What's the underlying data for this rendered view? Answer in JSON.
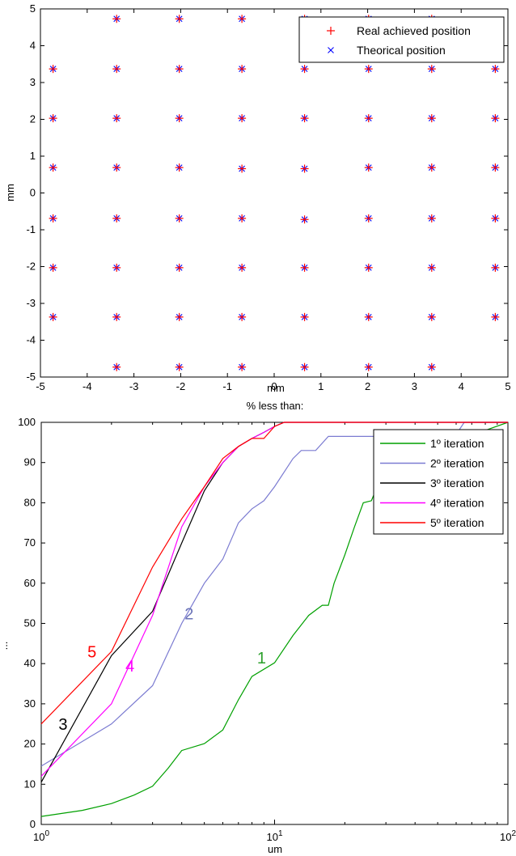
{
  "chart_data": [
    {
      "type": "scatter",
      "title": "",
      "xlabel": "mm",
      "ylabel": "mm",
      "xlim": [
        -5,
        5
      ],
      "ylim": [
        -5,
        5
      ],
      "xticks": [
        "-5",
        "-4",
        "-3",
        "-2",
        "-1",
        "0",
        "1",
        "2",
        "3",
        "4",
        "5"
      ],
      "yticks": [
        "5",
        "4",
        "3",
        "2",
        "1",
        "0",
        "-1",
        "-2",
        "-3",
        "-4",
        "-5"
      ],
      "grid": false,
      "legend_position": "top-right",
      "series": [
        {
          "name": "Real achieved position",
          "marker": "+",
          "color": "#ff0000",
          "points": [
            [
              -3.37,
              4.73
            ],
            [
              -2.03,
              4.73
            ],
            [
              -0.69,
              4.73
            ],
            [
              0.65,
              4.73
            ],
            [
              2.02,
              4.73
            ],
            [
              3.37,
              4.73
            ],
            [
              -4.73,
              3.37
            ],
            [
              -3.37,
              3.37
            ],
            [
              -2.03,
              3.37
            ],
            [
              -0.69,
              3.37
            ],
            [
              0.65,
              3.37
            ],
            [
              2.02,
              3.37
            ],
            [
              3.37,
              3.37
            ],
            [
              4.73,
              3.37
            ],
            [
              -4.73,
              2.03
            ],
            [
              -3.37,
              2.03
            ],
            [
              -2.03,
              2.03
            ],
            [
              -0.69,
              2.03
            ],
            [
              0.65,
              2.03
            ],
            [
              2.02,
              2.03
            ],
            [
              3.37,
              2.03
            ],
            [
              4.73,
              2.03
            ],
            [
              -4.73,
              0.69
            ],
            [
              -3.37,
              0.69
            ],
            [
              -2.03,
              0.69
            ],
            [
              -0.69,
              0.66
            ],
            [
              0.65,
              0.66
            ],
            [
              2.02,
              0.69
            ],
            [
              3.37,
              0.69
            ],
            [
              4.73,
              0.69
            ],
            [
              -4.73,
              -0.69
            ],
            [
              -3.37,
              -0.69
            ],
            [
              -2.03,
              -0.69
            ],
            [
              -0.69,
              -0.69
            ],
            [
              0.65,
              -0.72
            ],
            [
              2.02,
              -0.69
            ],
            [
              3.37,
              -0.69
            ],
            [
              4.73,
              -0.69
            ],
            [
              -4.73,
              -2.03
            ],
            [
              -3.37,
              -2.03
            ],
            [
              -2.03,
              -2.03
            ],
            [
              -0.69,
              -2.03
            ],
            [
              0.65,
              -2.03
            ],
            [
              2.02,
              -2.03
            ],
            [
              3.37,
              -2.03
            ],
            [
              4.73,
              -2.03
            ],
            [
              -4.73,
              -3.37
            ],
            [
              -3.37,
              -3.37
            ],
            [
              -2.03,
              -3.37
            ],
            [
              -0.69,
              -3.37
            ],
            [
              0.65,
              -3.37
            ],
            [
              2.02,
              -3.37
            ],
            [
              3.37,
              -3.37
            ],
            [
              4.73,
              -3.37
            ],
            [
              -3.37,
              -4.73
            ],
            [
              -2.03,
              -4.73
            ],
            [
              -0.69,
              -4.73
            ],
            [
              0.65,
              -4.73
            ],
            [
              2.02,
              -4.73
            ],
            [
              3.37,
              -4.73
            ]
          ]
        },
        {
          "name": "Theorical position",
          "marker": "x",
          "color": "#0000ff",
          "points": [
            [
              -3.37,
              4.73
            ],
            [
              -2.03,
              4.73
            ],
            [
              -0.69,
              4.73
            ],
            [
              0.65,
              4.73
            ],
            [
              2.02,
              4.73
            ],
            [
              3.37,
              4.73
            ],
            [
              -4.73,
              3.37
            ],
            [
              -3.37,
              3.37
            ],
            [
              -2.03,
              3.37
            ],
            [
              -0.69,
              3.37
            ],
            [
              0.65,
              3.37
            ],
            [
              2.02,
              3.37
            ],
            [
              3.37,
              3.37
            ],
            [
              4.73,
              3.37
            ],
            [
              -4.73,
              2.03
            ],
            [
              -3.37,
              2.03
            ],
            [
              -2.03,
              2.03
            ],
            [
              -0.69,
              2.03
            ],
            [
              0.65,
              2.03
            ],
            [
              2.02,
              2.03
            ],
            [
              3.37,
              2.03
            ],
            [
              4.73,
              2.03
            ],
            [
              -4.73,
              0.69
            ],
            [
              -3.37,
              0.69
            ],
            [
              -2.03,
              0.69
            ],
            [
              -0.69,
              0.66
            ],
            [
              0.65,
              0.66
            ],
            [
              2.02,
              0.69
            ],
            [
              3.37,
              0.69
            ],
            [
              4.73,
              0.69
            ],
            [
              -4.73,
              -0.69
            ],
            [
              -3.37,
              -0.69
            ],
            [
              -2.03,
              -0.69
            ],
            [
              -0.69,
              -0.69
            ],
            [
              0.65,
              -0.72
            ],
            [
              2.02,
              -0.69
            ],
            [
              3.37,
              -0.69
            ],
            [
              4.73,
              -0.69
            ],
            [
              -4.73,
              -2.03
            ],
            [
              -3.37,
              -2.03
            ],
            [
              -2.03,
              -2.03
            ],
            [
              -0.69,
              -2.03
            ],
            [
              0.65,
              -2.03
            ],
            [
              2.02,
              -2.03
            ],
            [
              3.37,
              -2.03
            ],
            [
              4.73,
              -2.03
            ],
            [
              -4.73,
              -3.37
            ],
            [
              -3.37,
              -3.37
            ],
            [
              -2.03,
              -3.37
            ],
            [
              -0.69,
              -3.37
            ],
            [
              0.65,
              -3.37
            ],
            [
              2.02,
              -3.37
            ],
            [
              3.37,
              -3.37
            ],
            [
              4.73,
              -3.37
            ],
            [
              -3.37,
              -4.73
            ],
            [
              -2.03,
              -4.73
            ],
            [
              -0.69,
              -4.73
            ],
            [
              0.65,
              -4.73
            ],
            [
              2.02,
              -4.73
            ],
            [
              3.37,
              -4.73
            ]
          ]
        }
      ]
    },
    {
      "type": "line",
      "title": "% less than:",
      "xlabel": "um",
      "ylabel": "...",
      "xscale": "log",
      "xlim": [
        1,
        100
      ],
      "ylim": [
        0,
        100
      ],
      "xtick_labels": [
        {
          "base": "10",
          "exp": "0",
          "value": 1
        },
        {
          "base": "10",
          "exp": "1",
          "value": 10
        },
        {
          "base": "10",
          "exp": "2",
          "value": 100
        }
      ],
      "yticks": [
        "0",
        "10",
        "20",
        "30",
        "40",
        "50",
        "60",
        "70",
        "80",
        "90",
        "100"
      ],
      "grid": false,
      "legend_position": "top-right",
      "series": [
        {
          "name": "1º iteration",
          "color": "#00a000",
          "points": [
            [
              1,
              2
            ],
            [
              1.5,
              3.5
            ],
            [
              2,
              5.2
            ],
            [
              2.5,
              7.3
            ],
            [
              3,
              9.5
            ],
            [
              3.5,
              14
            ],
            [
              4,
              18.4
            ],
            [
              5,
              20.1
            ],
            [
              6,
              23.5
            ],
            [
              7,
              31
            ],
            [
              8,
              36.8
            ],
            [
              10,
              40.2
            ],
            [
              12,
              47
            ],
            [
              14,
              52
            ],
            [
              16,
              54.5
            ],
            [
              17,
              54.5
            ],
            [
              18,
              60
            ],
            [
              20,
              67
            ],
            [
              22,
              74
            ],
            [
              24,
              80
            ],
            [
              26,
              80.5
            ],
            [
              28,
              85
            ],
            [
              30,
              93
            ],
            [
              35,
              97
            ],
            [
              40,
              98
            ],
            [
              60,
              98
            ],
            [
              80,
              98
            ],
            [
              100,
              100
            ]
          ]
        },
        {
          "name": "2º iteration",
          "color": "#7b7bd1",
          "points": [
            [
              1,
              14.5
            ],
            [
              2,
              25
            ],
            [
              3,
              34.5
            ],
            [
              4,
              50
            ],
            [
              5,
              60
            ],
            [
              6,
              66
            ],
            [
              7,
              75
            ],
            [
              8,
              78.5
            ],
            [
              9,
              80.5
            ],
            [
              10,
              84
            ],
            [
              12,
              91
            ],
            [
              13,
              93
            ],
            [
              15,
              93
            ],
            [
              17,
              96.5
            ],
            [
              20,
              96.5
            ],
            [
              40,
              96.5
            ],
            [
              60,
              97
            ],
            [
              65,
              100
            ],
            [
              100,
              100
            ]
          ]
        },
        {
          "name": "3º iteration",
          "color": "#000000",
          "points": [
            [
              1,
              10.5
            ],
            [
              2,
              42
            ],
            [
              3,
              53
            ],
            [
              4,
              70
            ],
            [
              5,
              83
            ],
            [
              6,
              90
            ],
            [
              7,
              94
            ],
            [
              8,
              96
            ],
            [
              9,
              97.5
            ],
            [
              10,
              99
            ],
            [
              11,
              100
            ],
            [
              100,
              100
            ]
          ]
        },
        {
          "name": "4º iteration",
          "color": "#ff00ff",
          "points": [
            [
              1,
              12
            ],
            [
              2,
              30
            ],
            [
              3,
              52
            ],
            [
              4,
              74
            ],
            [
              5,
              84
            ],
            [
              6,
              90
            ],
            [
              7,
              94
            ],
            [
              8,
              96
            ],
            [
              9,
              97.5
            ],
            [
              10,
              99
            ],
            [
              11,
              100
            ],
            [
              100,
              100
            ]
          ]
        },
        {
          "name": "5º iteration",
          "color": "#ff0000",
          "points": [
            [
              1,
              25
            ],
            [
              2,
              43
            ],
            [
              3,
              64
            ],
            [
              4,
              76
            ],
            [
              5,
              84
            ],
            [
              6,
              91
            ],
            [
              7,
              94
            ],
            [
              8,
              96
            ],
            [
              9,
              96
            ],
            [
              10,
              99
            ],
            [
              11,
              100
            ],
            [
              100,
              100
            ]
          ]
        }
      ],
      "annotations": [
        {
          "text": "1",
          "color": "#2ca02c",
          "at": [
            8.8,
            40
          ]
        },
        {
          "text": "2",
          "color": "#6b74b8",
          "at": [
            4.3,
            51
          ]
        },
        {
          "text": "3",
          "color": "#000000",
          "at": [
            1.24,
            23.5
          ]
        },
        {
          "text": "4",
          "color": "#ff00ff",
          "at": [
            2.4,
            38
          ]
        },
        {
          "text": "5",
          "color": "#ff0000",
          "at": [
            1.65,
            41.5
          ]
        }
      ]
    }
  ]
}
